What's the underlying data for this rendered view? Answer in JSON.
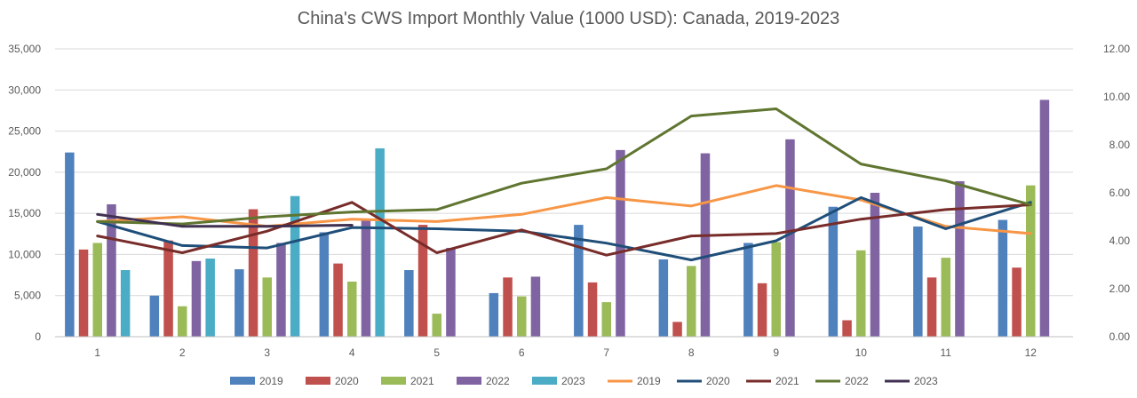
{
  "chart_data": {
    "type": "bar",
    "title": "China's CWS Import Monthly Value (1000 USD): Canada, 2019-2023",
    "categories": [
      "1",
      "2",
      "3",
      "4",
      "5",
      "6",
      "7",
      "8",
      "9",
      "10",
      "11",
      "12"
    ],
    "y_left": {
      "min": 0,
      "max": 35000,
      "step": 5000,
      "tick_labels": [
        "0",
        "5,000",
        "10,000",
        "15,000",
        "20,000",
        "25,000",
        "30,000",
        "35,000"
      ]
    },
    "y_right": {
      "min": 0,
      "max": 12,
      "step": 2,
      "tick_labels": [
        "0.00",
        "2.00",
        "4.00",
        "6.00",
        "8.00",
        "10.00",
        "12.00"
      ]
    },
    "grid": true,
    "legend_position": "bottom",
    "bar_series": [
      {
        "name": "2019",
        "color": "#4f81bd",
        "values": [
          22400,
          5000,
          8200,
          12700,
          8100,
          5300,
          13600,
          9400,
          11400,
          15800,
          13400,
          14200
        ]
      },
      {
        "name": "2020",
        "color": "#c0504d",
        "values": [
          10600,
          11700,
          15500,
          8900,
          13600,
          7200,
          6600,
          1800,
          6500,
          2000,
          7200,
          8400
        ]
      },
      {
        "name": "2021",
        "color": "#9bbb59",
        "values": [
          11400,
          3700,
          7200,
          6700,
          2800,
          4900,
          4200,
          8600,
          11500,
          10500,
          9600,
          18400
        ]
      },
      {
        "name": "2022",
        "color": "#8064a2",
        "values": [
          16100,
          9200,
          11400,
          14100,
          10800,
          7300,
          22700,
          22300,
          24000,
          17500,
          18900,
          28800
        ]
      },
      {
        "name": "2023",
        "color": "#4bacc6",
        "values": [
          8100,
          9500,
          17100,
          22900,
          null,
          null,
          null,
          null,
          null,
          null,
          null,
          null
        ]
      }
    ],
    "line_series": [
      {
        "name": "2019",
        "color": "#f79646",
        "values": [
          4.8,
          5.0,
          4.6,
          4.9,
          4.8,
          5.1,
          5.8,
          5.45,
          6.3,
          5.7,
          4.6,
          4.3
        ]
      },
      {
        "name": "2020",
        "color": "#1f4e79",
        "values": [
          4.8,
          3.8,
          3.7,
          4.55,
          4.5,
          4.4,
          3.9,
          3.2,
          4.0,
          5.8,
          4.5,
          5.6
        ]
      },
      {
        "name": "2021",
        "color": "#772c2a",
        "values": [
          4.2,
          3.5,
          4.4,
          5.6,
          3.5,
          4.45,
          3.4,
          4.2,
          4.3,
          4.9,
          5.3,
          5.5
        ]
      },
      {
        "name": "2022",
        "color": "#5f7530",
        "values": [
          4.8,
          4.7,
          5.0,
          5.2,
          5.3,
          6.4,
          7.0,
          9.2,
          9.5,
          7.2,
          6.5,
          5.5
        ]
      },
      {
        "name": "2023",
        "color": "#403151",
        "values": [
          5.1,
          4.6,
          4.6,
          4.65,
          null,
          null,
          null,
          null,
          null,
          null,
          null,
          null
        ]
      }
    ]
  }
}
